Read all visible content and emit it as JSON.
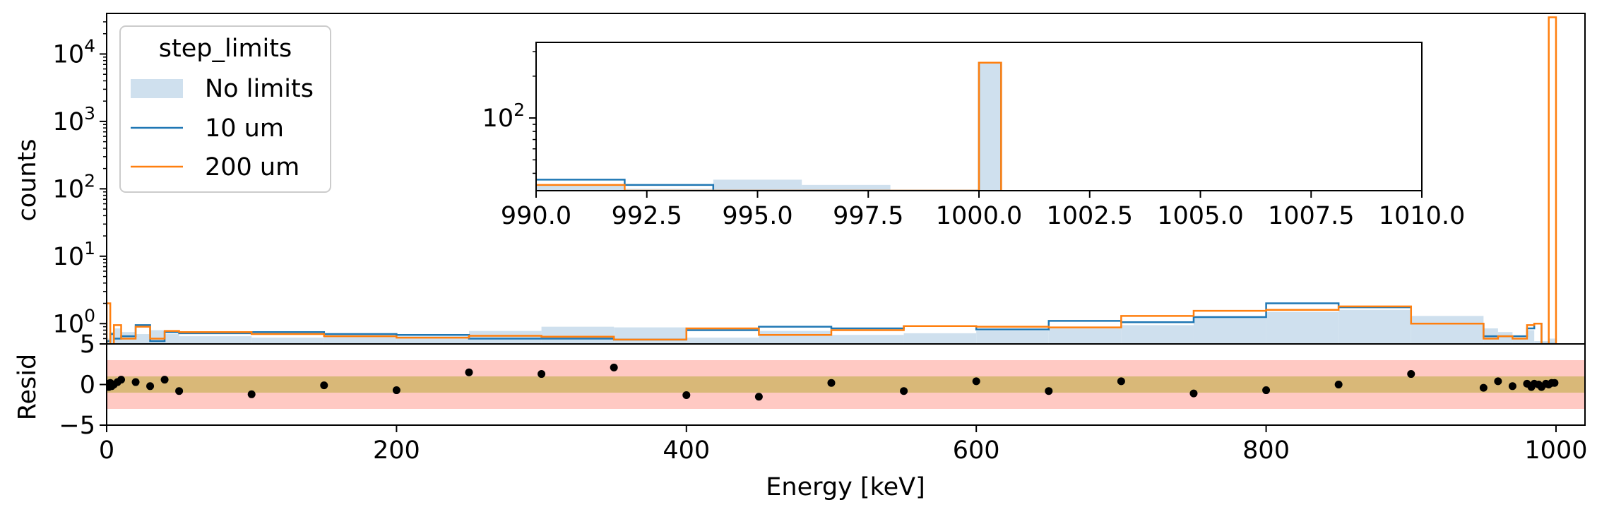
{
  "chart_data": [
    {
      "panel": "main",
      "type": "line",
      "ylabel": "counts",
      "yscale": "log",
      "ylim": [
        0.5,
        40000
      ],
      "xlim": [
        0,
        1020
      ],
      "ytick_labels": [
        {
          "base": "10",
          "exp": "0"
        },
        {
          "base": "10",
          "exp": "1"
        },
        {
          "base": "10",
          "exp": "2"
        },
        {
          "base": "10",
          "exp": "3"
        },
        {
          "base": "10",
          "exp": "4"
        }
      ],
      "legend": {
        "title": "step_limits",
        "placement": "upper-left",
        "entries": [
          "No limits",
          "10 um",
          "200 um"
        ]
      },
      "colors": {
        "no_limits": "#cfe0ee",
        "um10": "#1f77b4",
        "um200": "#ff7f0e"
      },
      "bin_edges": [
        0,
        2.5,
        5,
        10,
        20,
        30,
        40,
        50,
        100,
        150,
        200,
        250,
        300,
        350,
        400,
        450,
        500,
        550,
        600,
        650,
        700,
        750,
        800,
        850,
        900,
        950,
        960,
        970,
        980,
        985,
        990,
        995,
        1000
      ],
      "series": [
        {
          "name": "No limits",
          "style": "fill",
          "values": [
            0.6,
            0.75,
            0.85,
            0.75,
            0.7,
            0.8,
            0.7,
            0.65,
            0.62,
            0.7,
            0.65,
            0.78,
            0.9,
            0.88,
            0.62,
            0.78,
            0.68,
            0.72,
            0.78,
            0.85,
            0.95,
            1.25,
            1.5,
            1.6,
            1.3,
            0.85,
            0.75,
            0.6,
            0.8,
            0.55,
            0.55,
            0.6
          ]
        },
        {
          "name": "10 um",
          "style": "step",
          "values": [
            0.55,
            0.7,
            0.6,
            0.65,
            0.95,
            0.55,
            0.75,
            0.72,
            0.75,
            0.7,
            0.68,
            0.6,
            0.6,
            0.58,
            0.8,
            0.9,
            0.85,
            0.92,
            0.82,
            1.1,
            1.05,
            1.25,
            2.0,
            1.75,
            1.0,
            0.65,
            0.65,
            0.65,
            0.85,
            1.0,
            0.5,
            0.5
          ]
        },
        {
          "name": "200 um",
          "style": "step",
          "values": [
            2.0,
            0.4,
            0.95,
            0.6,
            0.9,
            0.6,
            0.78,
            0.75,
            0.7,
            0.65,
            0.62,
            0.66,
            0.64,
            0.58,
            0.85,
            0.68,
            0.8,
            0.92,
            0.9,
            0.88,
            1.3,
            1.55,
            1.6,
            1.8,
            1.0,
            0.6,
            0.65,
            0.6,
            0.95,
            1.0,
            0.4,
            35000
          ]
        }
      ]
    },
    {
      "panel": "inset",
      "type": "line",
      "yscale": "log",
      "xlim": [
        990,
        1010
      ],
      "ylim": [
        30,
        350
      ],
      "xtick_labels": [
        "990.0",
        "992.5",
        "995.0",
        "997.5",
        "1000.0",
        "1002.5",
        "1005.0",
        "1007.5",
        "1010.0"
      ],
      "ytick_labels": [
        {
          "base": "10",
          "exp": "2"
        }
      ],
      "bin_edges": [
        990,
        992,
        994,
        996,
        998,
        1000,
        1000.5
      ],
      "series": [
        {
          "name": "No limits",
          "style": "fill",
          "values": [
            33,
            31,
            36,
            33,
            0,
            250
          ]
        },
        {
          "name": "10 um",
          "style": "step",
          "values": [
            36,
            33,
            30,
            30,
            30,
            250
          ]
        },
        {
          "name": "200 um",
          "style": "step",
          "values": [
            33,
            30,
            30,
            30,
            30,
            250
          ]
        }
      ]
    },
    {
      "panel": "residual",
      "type": "scatter",
      "ylabel": "Resid",
      "xlabel": "Energy [keV]",
      "xlim": [
        0,
        1020
      ],
      "ylim": [
        -5,
        5
      ],
      "xtick_labels": [
        "0",
        "200",
        "400",
        "600",
        "800",
        "1000"
      ],
      "ytick_labels": [
        "−5",
        "0",
        "5"
      ],
      "bands": [
        {
          "from": -3,
          "to": 3,
          "color": "#ffc9c3"
        },
        {
          "from": -1,
          "to": 1,
          "color": "#d9b878"
        }
      ],
      "x": [
        0.5,
        1.5,
        2.5,
        3.5,
        5,
        7.5,
        10,
        20,
        30,
        40,
        50,
        100,
        150,
        200,
        250,
        300,
        350,
        400,
        450,
        500,
        550,
        600,
        650,
        700,
        750,
        800,
        850,
        900,
        950,
        960,
        970,
        980,
        983,
        985,
        988,
        990,
        993,
        995,
        997,
        999
      ],
      "y": [
        0.1,
        -0.3,
        0.2,
        -0.2,
        0.0,
        0.3,
        0.6,
        0.3,
        -0.2,
        0.6,
        -0.8,
        -1.2,
        -0.1,
        -0.7,
        1.5,
        1.3,
        2.1,
        -1.3,
        -1.5,
        0.2,
        -0.8,
        0.4,
        -0.8,
        0.4,
        -1.1,
        -0.7,
        0.0,
        1.3,
        -0.4,
        0.4,
        -0.2,
        0.1,
        -0.3,
        0.1,
        0.0,
        -0.3,
        0.1,
        0.0,
        0.2,
        0.2
      ]
    }
  ]
}
